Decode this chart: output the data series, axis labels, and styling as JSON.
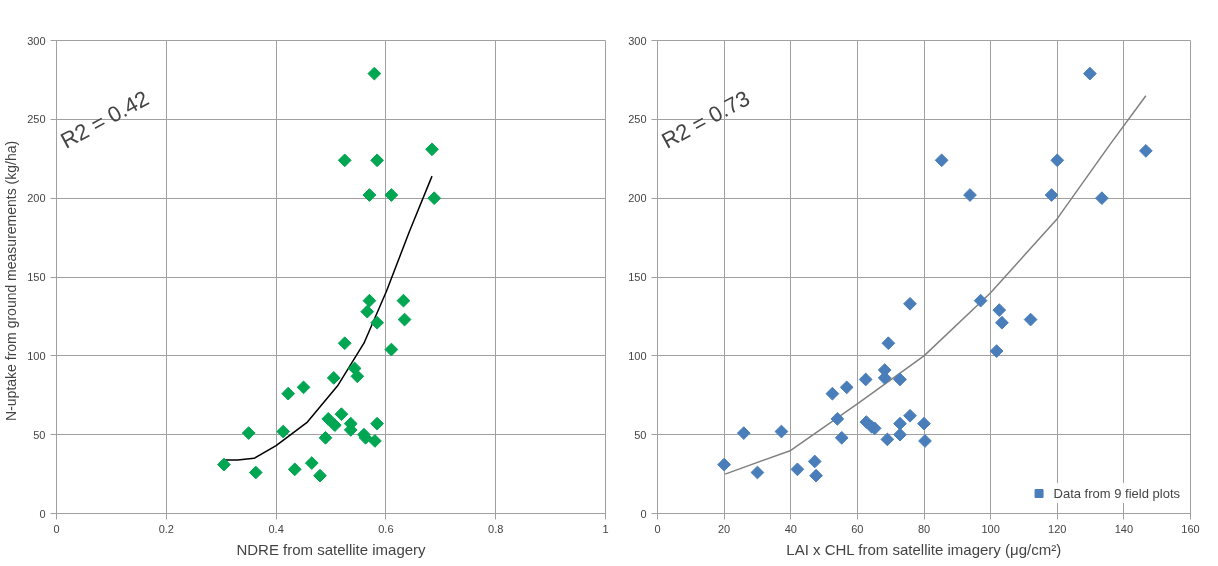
{
  "chart_data": [
    {
      "type": "scatter",
      "xlabel": "NDRE from satellite imagery",
      "ylabel": "N-uptake  from ground measurements  (kg/ha)",
      "annotations": [
        "R2 = 0.42"
      ],
      "xlim": [
        0,
        1
      ],
      "ylim": [
        0,
        300
      ],
      "xticks": [
        0,
        0.2,
        0.4,
        0.6,
        0.8,
        1
      ],
      "yticks": [
        0,
        50,
        100,
        150,
        200,
        250,
        300
      ],
      "grid": true,
      "marker": "diamond",
      "series": [
        {
          "color": "#00a651",
          "x": [
            0.305,
            0.35,
            0.363,
            0.413,
            0.422,
            0.45,
            0.434,
            0.465,
            0.48,
            0.49,
            0.495,
            0.507,
            0.505,
            0.519,
            0.525,
            0.536,
            0.536,
            0.543,
            0.548,
            0.56,
            0.563,
            0.566,
            0.57,
            0.584,
            0.584,
            0.58,
            0.632,
            0.634,
            0.61,
            0.525,
            0.584,
            0.57,
            0.61,
            0.579,
            0.684,
            0.688
          ],
          "values": [
            31,
            51,
            26,
            52,
            76,
            80,
            28,
            32,
            24,
            48,
            60,
            56,
            86,
            63,
            108,
            57,
            53,
            92,
            87,
            50,
            48,
            128,
            135,
            121,
            57,
            46,
            135,
            123,
            104,
            224,
            224,
            202,
            202,
            279,
            231,
            200
          ]
        },
        {
          "type": "line",
          "marker": "none",
          "color": "#000000",
          "x": [
            0.305,
            0.33,
            0.36,
            0.4,
            0.457,
            0.512,
            0.56,
            0.601,
            0.643,
            0.684
          ],
          "values": [
            34,
            34,
            35,
            43,
            58,
            81,
            108,
            141,
            179,
            214
          ]
        }
      ]
    },
    {
      "type": "scatter",
      "xlabel": "LAI x CHL from satellite imagery (μg/cm²)",
      "annotations": [
        "R2 = 0.73"
      ],
      "xlim": [
        0,
        160
      ],
      "ylim": [
        0,
        300
      ],
      "xticks": [
        0,
        20,
        40,
        60,
        80,
        100,
        120,
        140,
        160
      ],
      "yticks": [
        0,
        50,
        100,
        150,
        200,
        250,
        300
      ],
      "grid": true,
      "marker": "diamond",
      "legend": "bottom right",
      "series": [
        {
          "name": "Data from 9 field plots",
          "color": "#4a7ebb",
          "x": [
            20,
            25.9,
            30,
            37.2,
            42,
            47.2,
            47.6,
            52.5,
            54,
            55.3,
            56.8,
            62.5,
            62.7,
            64.3,
            65.2,
            68.2,
            68.2,
            69,
            69.3,
            72.8,
            72.8,
            72.8,
            75.8,
            75.8,
            80,
            80.3,
            85.3,
            93.8,
            97,
            101.8,
            102.6,
            103.4,
            112,
            118.3,
            120,
            129.8,
            133.4,
            146.6
          ],
          "values": [
            31,
            51,
            26,
            52,
            28,
            33,
            24,
            76,
            60,
            48,
            80,
            85,
            58,
            55,
            54,
            91,
            86,
            47,
            108,
            85,
            57,
            50,
            62,
            133,
            57,
            46,
            224,
            202,
            135,
            103,
            129,
            121,
            123,
            202,
            224,
            279,
            200,
            230
          ]
        },
        {
          "type": "line",
          "marker": "none",
          "color": "#808080",
          "x": [
            20.3,
            40,
            60.3,
            80,
            100,
            120,
            135.8,
            146.6
          ],
          "values": [
            25,
            40,
            70,
            100,
            140,
            187,
            234,
            265
          ]
        }
      ]
    }
  ]
}
